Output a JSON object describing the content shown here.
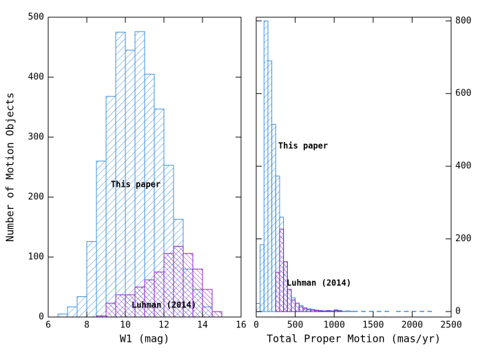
{
  "chart_data": [
    {
      "type": "histogram",
      "x_label": "W1 (mag)",
      "y_label": "Number of Motion Objects",
      "bins": [
        6.5,
        7,
        7.5,
        8,
        8.5,
        9,
        9.5,
        10,
        10.5,
        11,
        11.5,
        12,
        12.5,
        13,
        13.5,
        14,
        14.5,
        15
      ],
      "series": [
        {
          "name": "This paper",
          "color": "#3b8fe0",
          "values": [
            5,
            17,
            34,
            126,
            260,
            368,
            475,
            445,
            476,
            405,
            347,
            253,
            163,
            80,
            46,
            17,
            0
          ]
        },
        {
          "name": "Luhman (2014)",
          "color": "#8a1fc0",
          "values": [
            0,
            0,
            0,
            0,
            2,
            23,
            37,
            37,
            50,
            62,
            75,
            106,
            118,
            106,
            80,
            46,
            9
          ]
        }
      ],
      "xlim": [
        6,
        16
      ],
      "xticks": [
        6,
        8,
        10,
        12,
        14,
        16
      ],
      "ylim": [
        0,
        500
      ],
      "yticks": [
        0,
        100,
        200,
        300,
        400,
        500
      ],
      "y_axis_side": "left"
    },
    {
      "type": "histogram",
      "x_label": "Total Proper Motion (mas/yr)",
      "bins": [
        0,
        50,
        100,
        150,
        200,
        250,
        300,
        350,
        400,
        450,
        500,
        550,
        600,
        650,
        700,
        750,
        800,
        850,
        900,
        950,
        1000,
        1050,
        1100,
        1150,
        1200,
        1250,
        1300,
        1350,
        1400,
        1450,
        1500,
        1550,
        1600,
        1650,
        1700,
        1750,
        1800,
        1850,
        1900,
        1950,
        2000,
        2050,
        2100,
        2150,
        2200,
        2250,
        2300
      ],
      "series": [
        {
          "name": "This paper",
          "color": "#3b8fe0",
          "values": [
            22,
            184,
            800,
            690,
            515,
            373,
            260,
            137,
            61,
            38,
            23,
            17,
            11,
            8,
            6,
            4,
            3,
            2,
            3,
            2,
            5,
            3,
            1,
            2,
            1,
            1,
            0,
            1,
            0,
            1,
            0,
            1,
            0,
            1,
            0,
            0,
            1,
            0,
            1,
            0,
            1,
            0,
            1,
            0,
            1,
            0
          ]
        },
        {
          "name": "Luhman (2014)",
          "color": "#8a1fc0",
          "values": [
            0,
            0,
            0,
            0,
            0,
            108,
            227,
            137,
            61,
            32,
            23,
            13,
            8,
            5,
            4,
            3,
            2,
            1,
            2,
            1,
            3,
            1,
            0,
            0,
            0,
            0,
            0,
            0,
            0,
            0,
            0,
            0,
            0,
            0,
            0,
            0,
            0,
            0,
            0,
            0,
            0,
            0,
            0,
            0,
            0,
            0
          ]
        }
      ],
      "xlim": [
        0,
        2500
      ],
      "xticks": [
        0,
        500,
        1000,
        1500,
        2000,
        2500
      ],
      "ylim": [
        -15,
        810
      ],
      "yticks": [
        0,
        200,
        400,
        600,
        800
      ],
      "y_axis_side": "right"
    }
  ]
}
